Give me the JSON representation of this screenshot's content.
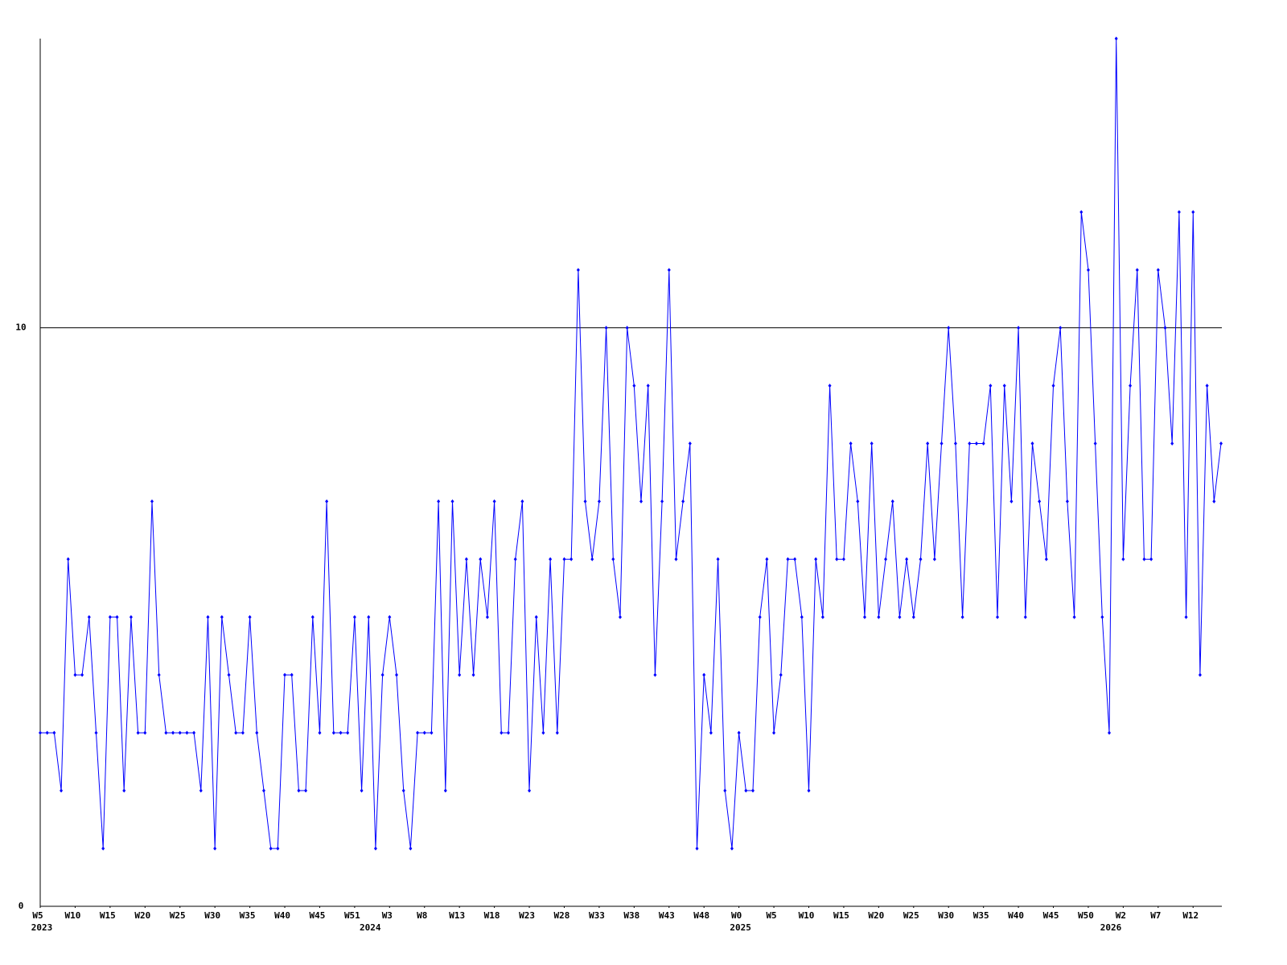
{
  "chart_data": {
    "type": "line",
    "values": [
      3,
      3,
      3,
      2,
      6,
      4,
      4,
      5,
      3,
      1,
      5,
      5,
      2,
      5,
      3,
      3,
      7,
      4,
      3,
      3,
      3,
      3,
      3,
      2,
      5,
      1,
      5,
      4,
      3,
      3,
      5,
      3,
      2,
      1,
      1,
      4,
      4,
      2,
      2,
      5,
      3,
      7,
      3,
      3,
      3,
      5,
      2,
      5,
      1,
      4,
      5,
      4,
      2,
      1,
      3,
      3,
      3,
      7,
      2,
      7,
      4,
      6,
      4,
      6,
      5,
      7,
      3,
      3,
      6,
      7,
      2,
      5,
      3,
      6,
      3,
      6,
      6,
      11,
      7,
      6,
      7,
      10,
      6,
      5,
      10,
      9,
      7,
      9,
      4,
      7,
      11,
      6,
      7,
      8,
      1,
      4,
      3,
      6,
      2,
      1,
      3,
      2,
      2,
      5,
      6,
      3,
      4,
      6,
      6,
      5,
      2,
      6,
      5,
      9,
      6,
      6,
      8,
      7,
      5,
      8,
      5,
      6,
      7,
      5,
      6,
      5,
      6,
      8,
      6,
      8,
      10,
      8,
      5,
      8,
      8,
      8,
      9,
      5,
      9,
      7,
      10,
      5,
      8,
      7,
      6,
      9,
      10,
      7,
      5,
      12,
      11,
      8,
      5,
      3,
      15,
      6,
      9,
      11,
      6,
      6,
      11,
      10,
      8,
      12,
      5,
      12,
      4,
      9,
      7,
      8
    ],
    "color": "#0000ff",
    "xlim": [
      0,
      169
    ],
    "ylim": [
      0,
      15
    ],
    "yticks": [
      0,
      10
    ],
    "grid": true,
    "xticks": [
      {
        "value": 0,
        "label": "W5"
      },
      {
        "value": 5,
        "label": "W10"
      },
      {
        "value": 10,
        "label": "W15"
      },
      {
        "value": 15,
        "label": "W20"
      },
      {
        "value": 20,
        "label": "W25"
      },
      {
        "value": 25,
        "label": "W30"
      },
      {
        "value": 30,
        "label": "W35"
      },
      {
        "value": 35,
        "label": "W40"
      },
      {
        "value": 40,
        "label": "W45"
      },
      {
        "value": 45,
        "label": "W51"
      },
      {
        "value": 50,
        "label": "W3"
      },
      {
        "value": 55,
        "label": "W8"
      },
      {
        "value": 60,
        "label": "W13"
      },
      {
        "value": 65,
        "label": "W18"
      },
      {
        "value": 70,
        "label": "W23"
      },
      {
        "value": 75,
        "label": "W28"
      },
      {
        "value": 80,
        "label": "W33"
      },
      {
        "value": 85,
        "label": "W38"
      },
      {
        "value": 90,
        "label": "W43"
      },
      {
        "value": 95,
        "label": "W48"
      },
      {
        "value": 100,
        "label": "W0"
      },
      {
        "value": 105,
        "label": "W5"
      },
      {
        "value": 110,
        "label": "W10"
      },
      {
        "value": 115,
        "label": "W15"
      },
      {
        "value": 120,
        "label": "W20"
      },
      {
        "value": 125,
        "label": "W25"
      },
      {
        "value": 130,
        "label": "W30"
      },
      {
        "value": 135,
        "label": "W35"
      },
      {
        "value": 140,
        "label": "W40"
      },
      {
        "value": 145,
        "label": "W45"
      },
      {
        "value": 150,
        "label": "W50"
      },
      {
        "value": 155,
        "label": "W2"
      },
      {
        "value": 160,
        "label": "W7"
      },
      {
        "value": 165,
        "label": "W12"
      }
    ],
    "year_ticks": [
      {
        "value": 0,
        "label": "2023"
      },
      {
        "value": 47,
        "label": "2024"
      },
      {
        "value": 100,
        "label": "2025"
      },
      {
        "value": 153,
        "label": "2026"
      }
    ]
  }
}
